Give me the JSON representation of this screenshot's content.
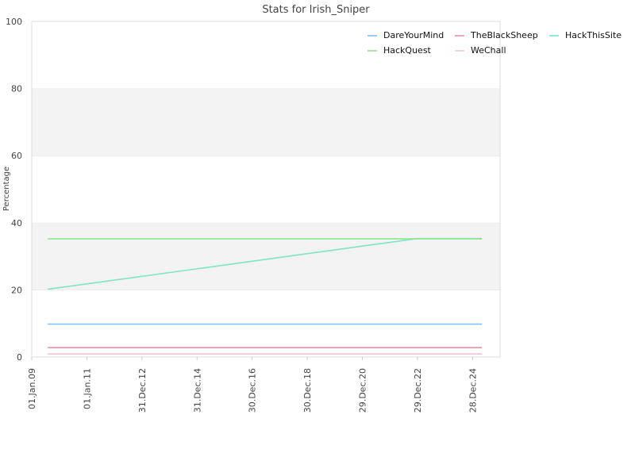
{
  "chart_data": {
    "type": "line",
    "title": "Stats for Irish_Sniper",
    "xlabel": "",
    "ylabel": "Percentage",
    "ylim": [
      0,
      100
    ],
    "y_ticks": [
      "0",
      "20",
      "40",
      "60",
      "80",
      "100"
    ],
    "x_tick_labels": [
      "01.Jan.09",
      "01.Jan.11",
      "31.Dec.12",
      "31.Dec.14",
      "30.Dec.16",
      "30.Dec.18",
      "29.Dec.20",
      "29.Dec.22",
      "28.Dec.24"
    ],
    "x": [
      "2009-08-01",
      "2022-12-29",
      "2025-04-30"
    ],
    "grid": "horizontal bands",
    "legend_position": "top-right",
    "series": [
      {
        "name": "DareYourMind",
        "color": "#7fbfff",
        "values": [
          9.8,
          9.8,
          9.8
        ]
      },
      {
        "name": "TheBlackSheep",
        "color": "#f08ca6",
        "values": [
          2.8,
          2.8,
          2.8
        ]
      },
      {
        "name": "HackThisSite",
        "color": "#7ee6c2",
        "values": [
          20.2,
          35.3,
          35.3
        ]
      },
      {
        "name": "HackQuest",
        "color": "#8ee68e",
        "values": [
          35.2,
          35.2,
          35.2
        ]
      },
      {
        "name": "WeChall",
        "color": "#f7c3d2",
        "values": [
          0.9,
          0.9,
          0.9
        ]
      }
    ]
  }
}
